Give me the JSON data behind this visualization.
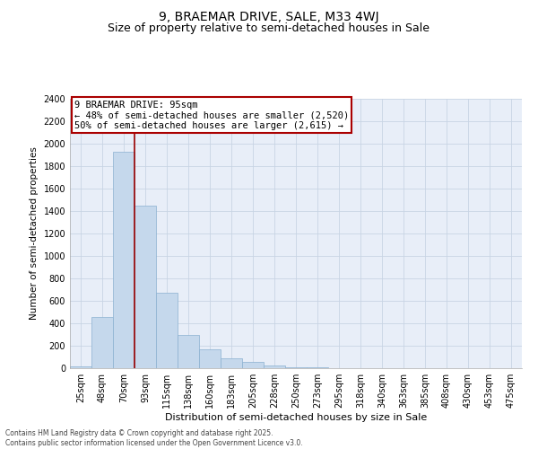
{
  "title": "9, BRAEMAR DRIVE, SALE, M33 4WJ",
  "subtitle": "Size of property relative to semi-detached houses in Sale",
  "xlabel": "Distribution of semi-detached houses by size in Sale",
  "ylabel": "Number of semi-detached properties",
  "categories": [
    "25sqm",
    "48sqm",
    "70sqm",
    "93sqm",
    "115sqm",
    "138sqm",
    "160sqm",
    "183sqm",
    "205sqm",
    "228sqm",
    "250sqm",
    "273sqm",
    "295sqm",
    "318sqm",
    "340sqm",
    "363sqm",
    "385sqm",
    "408sqm",
    "430sqm",
    "453sqm",
    "475sqm"
  ],
  "values": [
    15,
    460,
    1930,
    1450,
    670,
    295,
    170,
    85,
    55,
    25,
    10,
    5,
    3,
    2,
    1,
    0,
    0,
    0,
    0,
    0,
    0
  ],
  "bar_color": "#c5d8ec",
  "bar_edge_color": "#8ab0d0",
  "property_line_x": 2.5,
  "annotation_title": "9 BRAEMAR DRIVE: 95sqm",
  "annotation_line1": "← 48% of semi-detached houses are smaller (2,520)",
  "annotation_line2": "50% of semi-detached houses are larger (2,615) →",
  "annotation_box_color": "#aa0000",
  "ylim": [
    0,
    2400
  ],
  "yticks": [
    0,
    200,
    400,
    600,
    800,
    1000,
    1200,
    1400,
    1600,
    1800,
    2000,
    2200,
    2400
  ],
  "background_color": "#e8eef8",
  "grid_color": "#c8d4e4",
  "footer_line1": "Contains HM Land Registry data © Crown copyright and database right 2025.",
  "footer_line2": "Contains public sector information licensed under the Open Government Licence v3.0.",
  "title_fontsize": 10,
  "subtitle_fontsize": 9,
  "xlabel_fontsize": 8,
  "ylabel_fontsize": 7.5,
  "tick_fontsize": 7,
  "annot_fontsize": 7.5,
  "footer_fontsize": 5.5
}
